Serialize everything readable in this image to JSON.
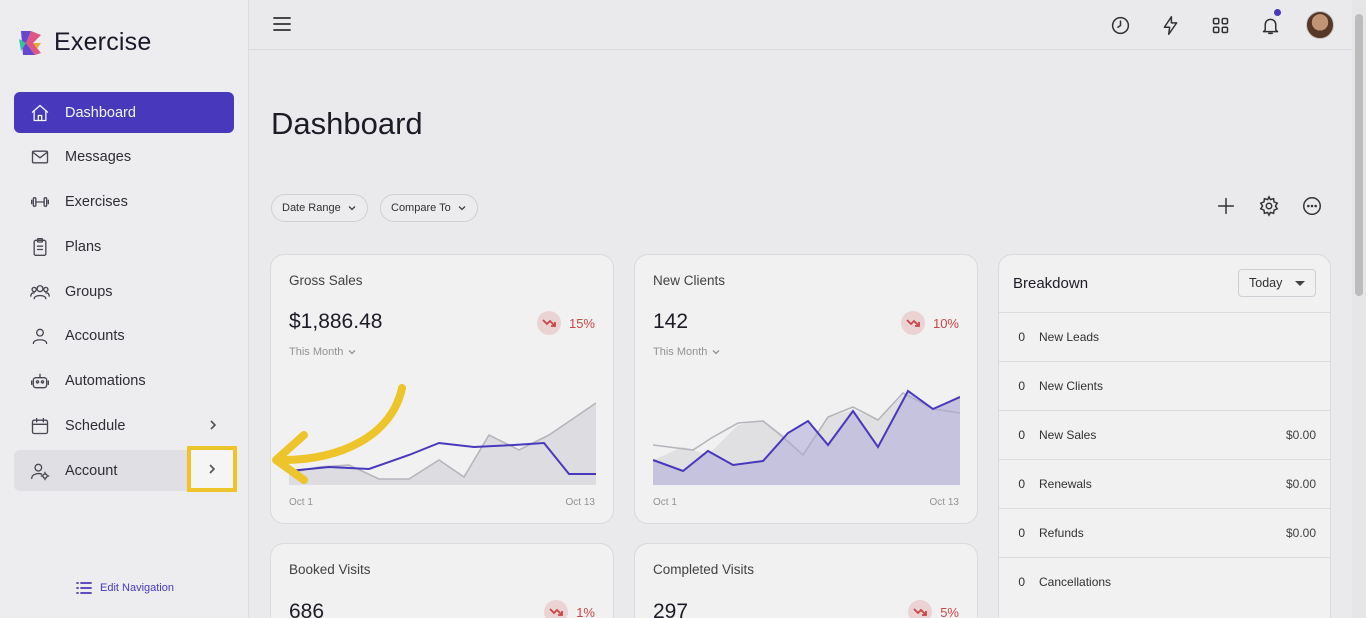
{
  "app": {
    "name": "Exercise"
  },
  "sidebar": {
    "items": [
      {
        "label": "Dashboard",
        "icon": "home-icon",
        "active": true
      },
      {
        "label": "Messages",
        "icon": "mail-icon"
      },
      {
        "label": "Exercises",
        "icon": "dumbbell-icon"
      },
      {
        "label": "Plans",
        "icon": "clipboard-icon"
      },
      {
        "label": "Groups",
        "icon": "users-icon"
      },
      {
        "label": "Accounts",
        "icon": "user-icon"
      },
      {
        "label": "Automations",
        "icon": "robot-icon"
      },
      {
        "label": "Schedule",
        "icon": "calendar-icon"
      },
      {
        "label": "Account",
        "icon": "user-gear-icon"
      }
    ],
    "edit_navigation": "Edit Navigation"
  },
  "main": {
    "title": "Dashboard",
    "filters": {
      "date_range": "Date Range",
      "compare_to": "Compare To"
    },
    "cards": [
      {
        "title": "Gross Sales",
        "value": "$1,886.48",
        "trend": "15%",
        "period": "This Month",
        "x_start": "Oct 1",
        "x_end": "Oct 13"
      },
      {
        "title": "New Clients",
        "value": "142",
        "trend": "10%",
        "period": "This Month",
        "x_start": "Oct 1",
        "x_end": "Oct 13"
      },
      {
        "title": "Booked Visits",
        "value": "686",
        "trend": "1%"
      },
      {
        "title": "Completed Visits",
        "value": "297",
        "trend": "5%"
      }
    ],
    "breakdown": {
      "title": "Breakdown",
      "period": "Today",
      "rows": [
        {
          "count": "0",
          "label": "New Leads",
          "value": ""
        },
        {
          "count": "0",
          "label": "New Clients",
          "value": ""
        },
        {
          "count": "0",
          "label": "New Sales",
          "value": "$0.00"
        },
        {
          "count": "0",
          "label": "Renewals",
          "value": "$0.00"
        },
        {
          "count": "0",
          "label": "Refunds",
          "value": "$0.00"
        },
        {
          "count": "0",
          "label": "Cancellations",
          "value": ""
        }
      ]
    }
  },
  "colors": {
    "accent": "#4b3bc4",
    "highlight": "#f7ce2d",
    "negative": "#d24a4a"
  }
}
